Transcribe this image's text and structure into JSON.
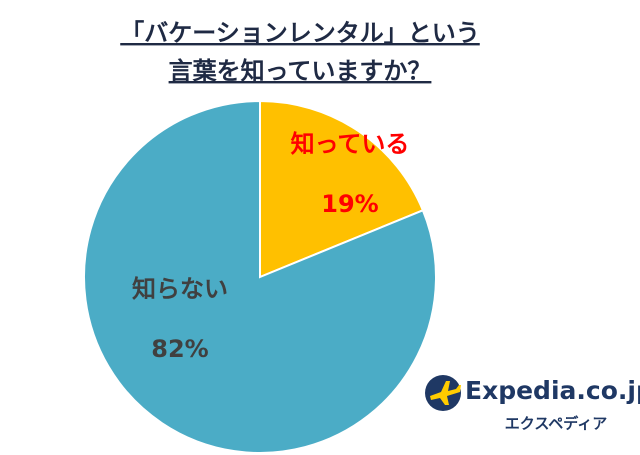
{
  "chart_data": {
    "type": "pie",
    "title": [
      "「バケーションレンタル」という",
      "言葉を知っていますか？"
    ],
    "categories": [
      "知っている",
      "知らない"
    ],
    "values": [
      19,
      82
    ],
    "value_labels": [
      "19%",
      "82%"
    ],
    "colors": [
      "#ffc000",
      "#4bacc6"
    ],
    "label_colors": [
      "#ff0000",
      "#404040"
    ]
  },
  "logo": {
    "name": "Expedia.co.jp",
    "subtitle": "エクスペディア"
  }
}
